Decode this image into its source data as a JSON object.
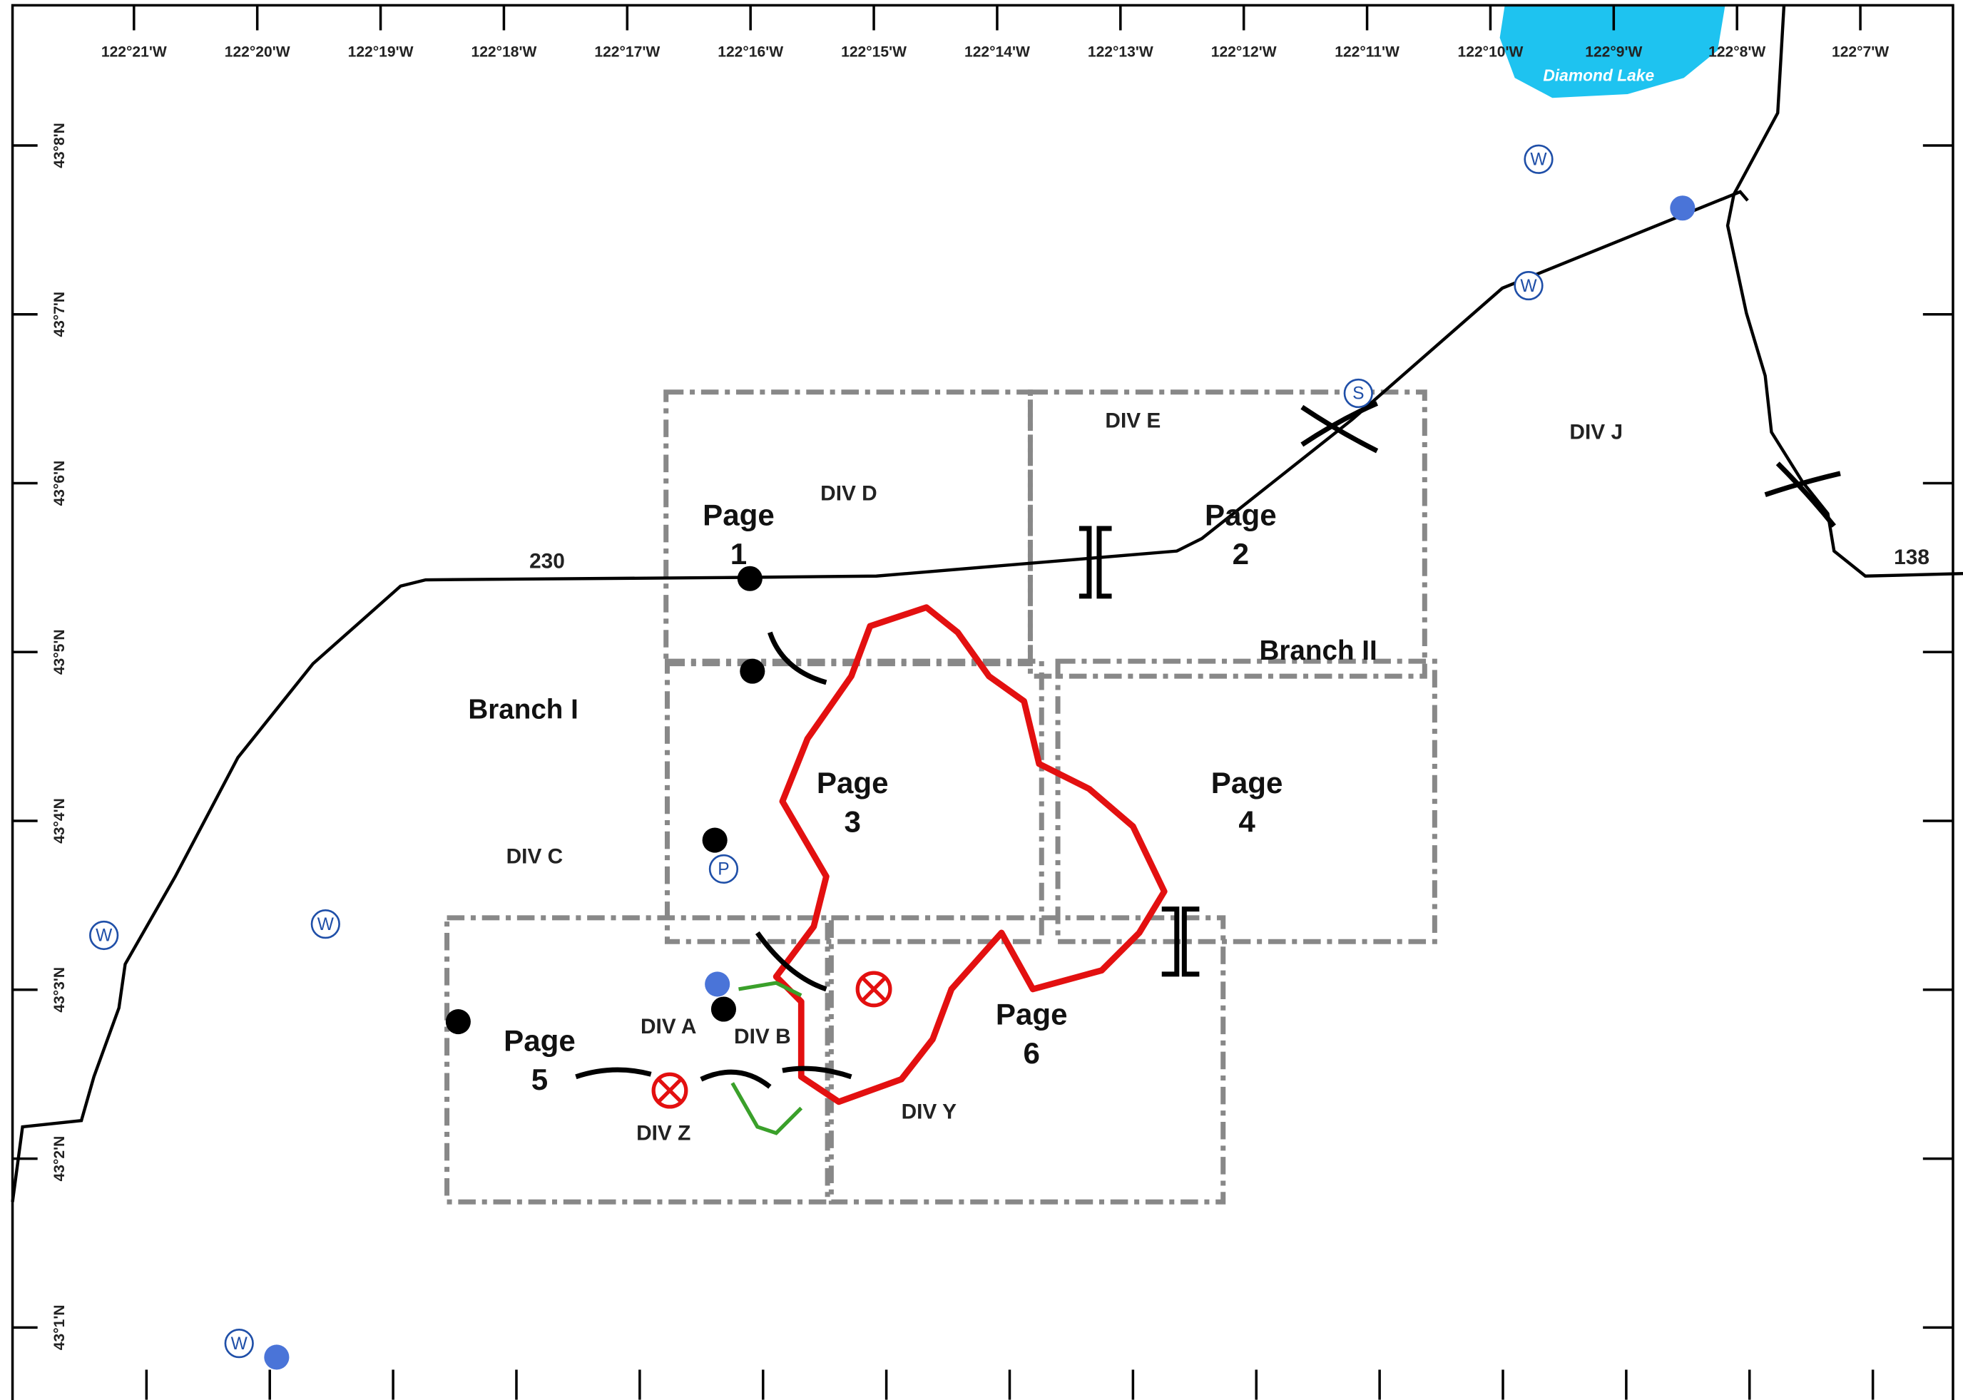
{
  "map": {
    "lon_labels": [
      "122°21'W",
      "122°20'W",
      "122°19'W",
      "122°18'W",
      "122°17'W",
      "122°16'W",
      "122°15'W",
      "122°14'W",
      "122°13'W",
      "122°12'W",
      "122°11'W",
      "122°10'W",
      "122°9'W",
      "122°8'W",
      "122°7'W"
    ],
    "lat_labels": [
      "43°8'N",
      "43°7'N",
      "43°6'N",
      "43°5'N",
      "43°4'N",
      "43°3'N",
      "43°2'N",
      "43°1'N"
    ],
    "lake": "Diamond Lake",
    "roads": [
      "230",
      "138"
    ],
    "branches": [
      "Branch I",
      "Branch II"
    ],
    "divisions": [
      "DIV D",
      "DIV E",
      "DIV J",
      "DIV C",
      "DIV A",
      "DIV B",
      "DIV Z",
      "DIV Y"
    ],
    "pages": [
      {
        "word": "Page",
        "number": "1"
      },
      {
        "word": "Page",
        "number": "2"
      },
      {
        "word": "Page",
        "number": "3"
      },
      {
        "word": "Page",
        "number": "4"
      },
      {
        "word": "Page",
        "number": "5"
      },
      {
        "word": "Page",
        "number": "6"
      }
    ],
    "symbols": [
      "W",
      "W",
      "W",
      "W",
      "W",
      "S",
      "P"
    ]
  }
}
